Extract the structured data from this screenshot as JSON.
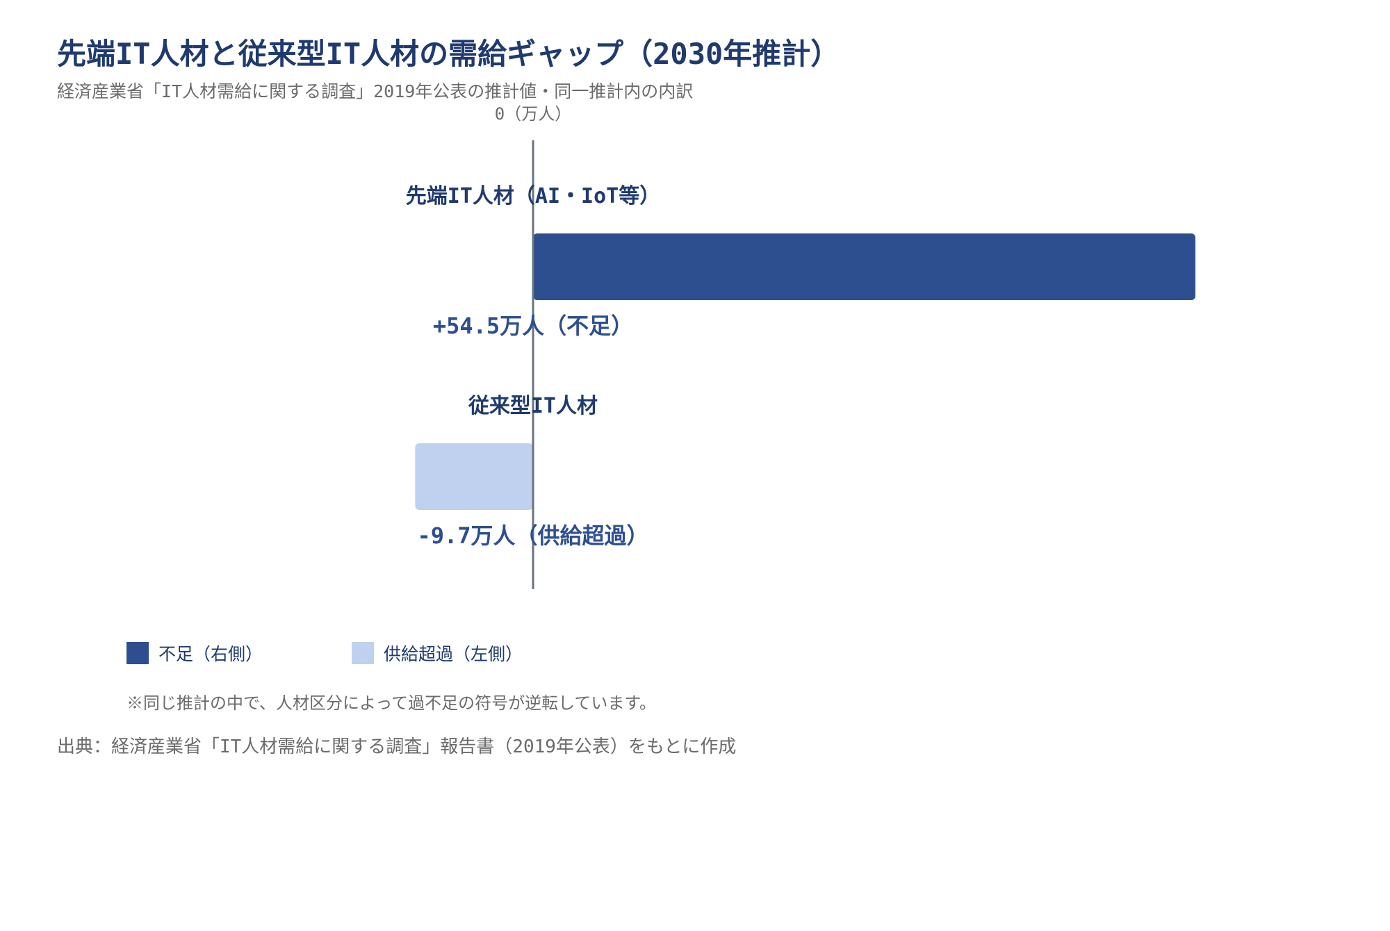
{
  "header": {
    "title": "先端IT人材と従来型IT人材の需給ギャップ（2030年推計）",
    "subtitle": "経済産業省「IT人材需給に関する調査」2019年公表の推計値・同一推計内の内訳"
  },
  "chart_data": {
    "type": "bar",
    "orientation": "horizontal",
    "axis_label": "0（万人）",
    "categories": [
      "先端IT人材（AI・IoT等）",
      "従来型IT人材"
    ],
    "values": [
      54.5,
      -9.7
    ],
    "value_labels": [
      "+54.5万人（不足）",
      "-9.7万人（供給超過）"
    ],
    "colors": [
      "#2e4f8f",
      "#bfd1ef"
    ],
    "xlim": [
      -18,
      64
    ],
    "grid": false,
    "legend_position": "bottom-left"
  },
  "legend": {
    "items": [
      {
        "label": "不足（右側）",
        "color": "#2e4f8f"
      },
      {
        "label": "供給超過（左側）",
        "color": "#bfd1ef"
      }
    ]
  },
  "note": "※同じ推計の中で、人材区分によって過不足の符号が逆転しています。",
  "source": "出典：経済産業省「IT人材需給に関する調査」報告書（2019年公表）をもとに作成"
}
